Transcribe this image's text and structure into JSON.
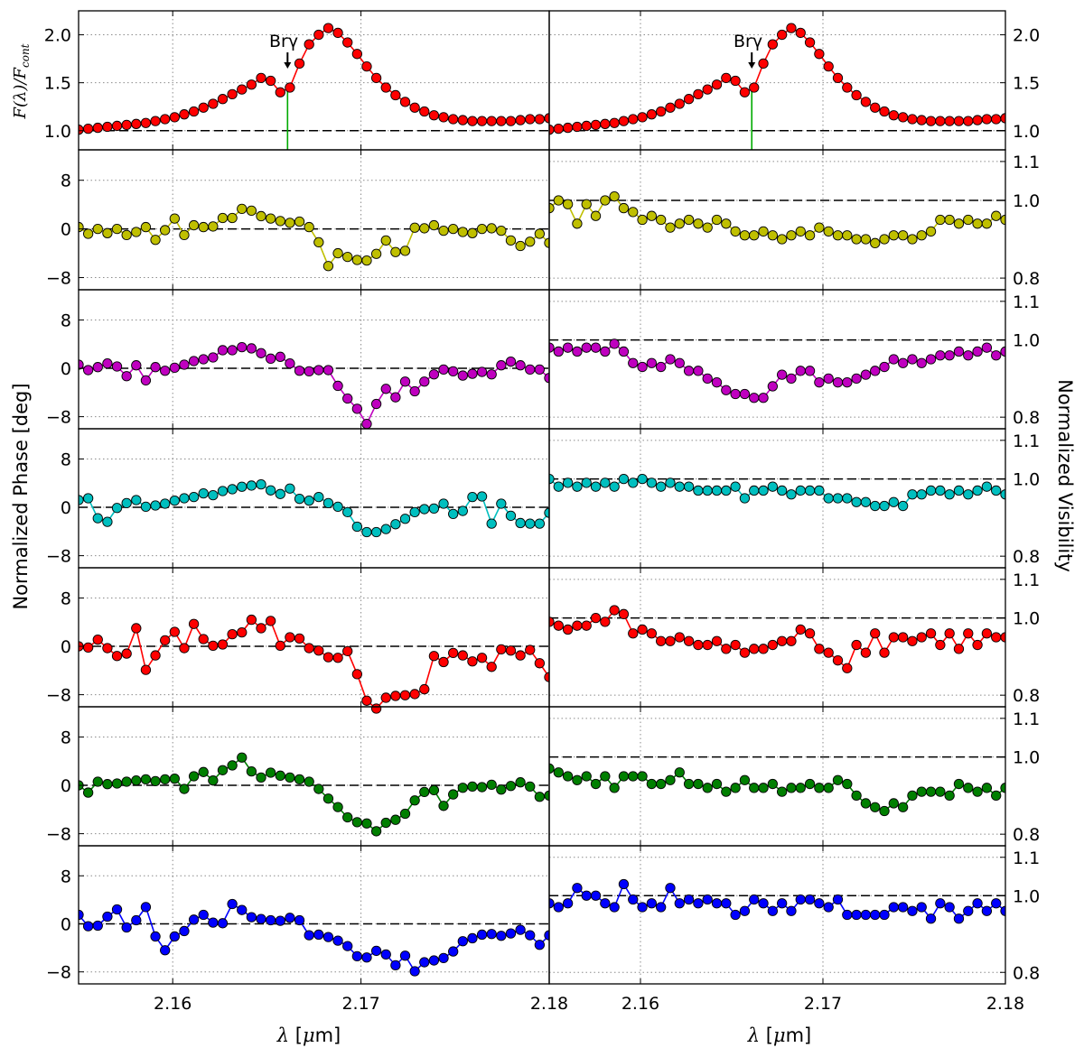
{
  "chart_data": {
    "type": "line",
    "x_ticks": [
      "2.16",
      "2.17",
      "2.18"
    ],
    "x_range": [
      2.155,
      2.18
    ],
    "xlabel": "λ [μm]",
    "ylabel_left_top": "F(λ)/F_cont",
    "ylabel_left": "Normalized Phase [deg]",
    "ylabel_right": "Normalized Visibility",
    "annotation": "Brγ",
    "annotation_x": 2.1661,
    "grid": true,
    "flux_ticks": [
      "1.0",
      "1.5",
      "2.0"
    ],
    "flux_range": [
      0.8,
      2.25
    ],
    "phase_ticks": [
      "8",
      "0",
      "−8"
    ],
    "phase_range": [
      -10,
      13
    ],
    "vis_ticks": [
      "1.1",
      "1.0",
      "0.8"
    ],
    "vis_range": [
      0.77,
      1.13
    ],
    "panels": [
      {
        "row": 0,
        "color": "#ff0000",
        "flux": [
          1.01,
          1.02,
          1.03,
          1.04,
          1.05,
          1.06,
          1.07,
          1.08,
          1.1,
          1.12,
          1.14,
          1.17,
          1.2,
          1.24,
          1.28,
          1.33,
          1.38,
          1.43,
          1.48,
          1.55,
          1.52,
          1.4,
          1.45,
          1.7,
          1.9,
          2.0,
          2.07,
          2.02,
          1.92,
          1.8,
          1.67,
          1.55,
          1.45,
          1.37,
          1.3,
          1.24,
          1.2,
          1.16,
          1.14,
          1.12,
          1.11,
          1.1,
          1.1,
          1.1,
          1.1,
          1.1,
          1.11,
          1.12,
          1.12,
          1.13
        ]
      },
      {
        "row": 1,
        "color": "#bfbf00",
        "phase": [
          0.3,
          -0.8,
          0,
          -0.7,
          0,
          -1,
          -0.5,
          0.3,
          -1.8,
          -0.2,
          1.7,
          -1,
          0.6,
          0.3,
          0.4,
          1.8,
          1.8,
          3.3,
          3,
          2.1,
          1.7,
          1.3,
          1,
          1.2,
          0.3,
          -2.2,
          -6.1,
          -4,
          -4.6,
          -5.1,
          -5.2,
          -4.1,
          -1.9,
          -3.8,
          -3.6,
          0.2,
          0.1,
          0.6,
          -0.3,
          0,
          -0.5,
          -0.7,
          0,
          0.1,
          -0.3,
          -1.9,
          -2.8,
          -2.1,
          -0.8,
          -2.3
        ],
        "vis": [
          0.98,
          1.0,
          0.99,
          0.94,
          0.99,
          0.96,
          1.0,
          1.01,
          0.98,
          0.97,
          0.95,
          0.96,
          0.95,
          0.93,
          0.94,
          0.95,
          0.94,
          0.93,
          0.95,
          0.94,
          0.92,
          0.91,
          0.91,
          0.92,
          0.91,
          0.9,
          0.91,
          0.92,
          0.91,
          0.93,
          0.92,
          0.91,
          0.91,
          0.9,
          0.9,
          0.89,
          0.9,
          0.91,
          0.91,
          0.9,
          0.91,
          0.92,
          0.95,
          0.95,
          0.94,
          0.95,
          0.94,
          0.94,
          0.96,
          0.95
        ]
      },
      {
        "row": 2,
        "color": "#bf00bf",
        "phase": [
          0.6,
          -0.3,
          0.2,
          0.8,
          0.3,
          -1.3,
          0.5,
          -2,
          0.2,
          -0.4,
          0.1,
          0.6,
          1.2,
          1.5,
          1.8,
          3,
          3,
          3.5,
          3.3,
          2.5,
          1.6,
          1.9,
          0.8,
          -0.4,
          -0.5,
          -0.3,
          -0.3,
          -2.9,
          -5,
          -6.7,
          -9.2,
          -5.9,
          -3.4,
          -4.8,
          -2.2,
          -3.8,
          -2.2,
          -1,
          -0.2,
          -0.5,
          -1.2,
          -0.9,
          -0.6,
          -1,
          0.5,
          1.1,
          0.5,
          -0.2,
          -0.2,
          -1.6
        ],
        "vis": [
          0.98,
          0.97,
          0.98,
          0.97,
          0.98,
          0.98,
          0.97,
          0.99,
          0.97,
          0.94,
          0.93,
          0.94,
          0.93,
          0.95,
          0.94,
          0.92,
          0.92,
          0.9,
          0.89,
          0.87,
          0.86,
          0.86,
          0.85,
          0.85,
          0.88,
          0.91,
          0.9,
          0.92,
          0.92,
          0.89,
          0.9,
          0.89,
          0.89,
          0.9,
          0.91,
          0.92,
          0.93,
          0.95,
          0.94,
          0.95,
          0.94,
          0.95,
          0.96,
          0.96,
          0.97,
          0.96,
          0.97,
          0.98,
          0.96,
          0.97
        ]
      },
      {
        "row": 3,
        "color": "#00bfbf",
        "phase": [
          1.2,
          1.5,
          -1.8,
          -2.4,
          -0.1,
          0.7,
          1.2,
          0.1,
          0.3,
          0.6,
          1.1,
          1.5,
          1.7,
          2.3,
          2,
          2.7,
          3,
          3.4,
          3.6,
          3.8,
          2.8,
          2.2,
          3.1,
          1.4,
          1.1,
          1.7,
          0.7,
          0.1,
          -0.8,
          -3.2,
          -4.1,
          -4.1,
          -3.6,
          -2.8,
          -1.9,
          -0.8,
          -0.3,
          -0.2,
          0.6,
          -1.1,
          -0.6,
          1.7,
          1.8,
          -2.7,
          0.6,
          -1.4,
          -2.6,
          -2.7,
          -2.7,
          -0.9
        ],
        "vis": [
          1.0,
          0.98,
          0.99,
          0.98,
          0.99,
          0.98,
          0.99,
          0.98,
          1.0,
          0.99,
          1.0,
          0.99,
          0.98,
          0.99,
          0.98,
          0.98,
          0.97,
          0.97,
          0.97,
          0.97,
          0.98,
          0.95,
          0.97,
          0.97,
          0.98,
          0.97,
          0.96,
          0.97,
          0.97,
          0.97,
          0.95,
          0.95,
          0.95,
          0.94,
          0.94,
          0.93,
          0.93,
          0.94,
          0.93,
          0.96,
          0.96,
          0.97,
          0.97,
          0.96,
          0.97,
          0.96,
          0.97,
          0.98,
          0.97,
          0.96
        ]
      },
      {
        "row": 4,
        "color": "#ff0000",
        "phase": [
          0,
          -0.2,
          1.1,
          -0.3,
          -1.6,
          -1.2,
          3,
          -3.9,
          -1.5,
          1,
          2.4,
          -0.3,
          3.7,
          1.2,
          0.1,
          0.3,
          2,
          2.3,
          4.4,
          3,
          4.2,
          0.1,
          1.5,
          1.3,
          -0.3,
          -0.7,
          -1.8,
          -1.9,
          -0.8,
          -4.6,
          -9,
          -10.3,
          -8.5,
          -8.2,
          -8.1,
          -7.9,
          -7.1,
          -1.6,
          -2.6,
          -1.1,
          -1.5,
          -2.5,
          -1.9,
          -3.4,
          -0.5,
          -0.7,
          -1.5,
          -0.6,
          -2.8,
          -5.1
        ],
        "vis": [
          0.99,
          0.98,
          0.97,
          0.98,
          0.98,
          1.0,
          0.99,
          1.02,
          1.01,
          0.96,
          0.97,
          0.96,
          0.94,
          0.94,
          0.95,
          0.94,
          0.93,
          0.93,
          0.94,
          0.92,
          0.93,
          0.91,
          0.92,
          0.92,
          0.93,
          0.94,
          0.94,
          0.97,
          0.96,
          0.92,
          0.91,
          0.89,
          0.87,
          0.93,
          0.91,
          0.96,
          0.91,
          0.95,
          0.95,
          0.94,
          0.95,
          0.96,
          0.93,
          0.96,
          0.92,
          0.96,
          0.93,
          0.96,
          0.95,
          0.95
        ]
      },
      {
        "row": 5,
        "color": "#007f00",
        "phase": [
          0,
          -1.2,
          0.6,
          0.2,
          0.3,
          0.6,
          0.8,
          1,
          0.7,
          1,
          1.1,
          -0.6,
          1.5,
          2.2,
          0.8,
          2.5,
          3.3,
          4.6,
          2.3,
          1.3,
          2.1,
          1.6,
          1.3,
          1,
          0.6,
          -0.6,
          -2.2,
          -3.6,
          -5.3,
          -6.1,
          -6.3,
          -7.6,
          -6.2,
          -5.7,
          -4.7,
          -2.5,
          -1.1,
          -0.8,
          -3.4,
          -1.5,
          -0.4,
          -0.2,
          -0.3,
          0.1,
          -0.7,
          -0.1,
          0.5,
          -0.2,
          -1.9,
          -1.7
        ],
        "vis": [
          0.97,
          0.96,
          0.95,
          0.94,
          0.95,
          0.93,
          0.95,
          0.92,
          0.95,
          0.95,
          0.95,
          0.93,
          0.93,
          0.94,
          0.96,
          0.93,
          0.93,
          0.92,
          0.93,
          0.91,
          0.92,
          0.94,
          0.92,
          0.92,
          0.93,
          0.91,
          0.92,
          0.92,
          0.93,
          0.92,
          0.92,
          0.94,
          0.93,
          0.9,
          0.88,
          0.87,
          0.86,
          0.88,
          0.87,
          0.9,
          0.91,
          0.91,
          0.91,
          0.9,
          0.93,
          0.92,
          0.91,
          0.92,
          0.9,
          0.92
        ]
      },
      {
        "row": 6,
        "color": "#0000ff",
        "phase": [
          1.5,
          -0.4,
          -0.3,
          1.2,
          2.4,
          -0.6,
          0.6,
          2.8,
          -2.1,
          -4.4,
          -2.1,
          -1.2,
          0.7,
          1.5,
          0.2,
          0.1,
          3.3,
          2.3,
          1.1,
          0.8,
          0.6,
          0.5,
          1,
          0.6,
          -1.9,
          -1.8,
          -2.2,
          -2.8,
          -3.7,
          -5.4,
          -5.6,
          -4.5,
          -5.1,
          -6.9,
          -5.3,
          -7.9,
          -6.4,
          -6.1,
          -5.7,
          -4.6,
          -2.9,
          -2.4,
          -1.8,
          -1.7,
          -2,
          -1.6,
          -1,
          -1.9,
          -3.5,
          -1.9
        ],
        "vis": [
          0.98,
          0.97,
          0.98,
          1.02,
          1.0,
          1.0,
          0.98,
          0.97,
          1.03,
          0.99,
          0.97,
          0.98,
          0.97,
          1.02,
          0.98,
          0.99,
          0.98,
          0.99,
          0.98,
          0.98,
          0.95,
          0.96,
          0.99,
          0.98,
          0.96,
          0.98,
          0.96,
          0.99,
          0.99,
          0.98,
          0.97,
          0.99,
          0.95,
          0.95,
          0.95,
          0.95,
          0.95,
          0.97,
          0.97,
          0.96,
          0.97,
          0.94,
          0.98,
          0.97,
          0.94,
          0.96,
          0.98,
          0.96,
          0.98,
          0.96
        ]
      }
    ]
  }
}
